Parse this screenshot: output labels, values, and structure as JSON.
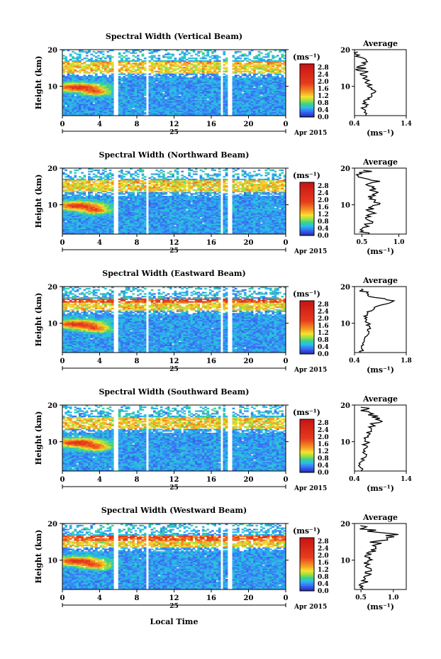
{
  "common": {
    "ylabel": "Height (km)",
    "xticks": [
      "0",
      "4",
      "8",
      "12",
      "16",
      "20",
      "0"
    ],
    "day_label": "25",
    "month_label": "Apr 2015",
    "xlabel": "Local Time",
    "unit_label": "(ms⁻¹)",
    "avg_title": "Average",
    "yticks": [
      "20",
      "10"
    ],
    "colorbar_ticks": [
      "2.8",
      "2.4",
      "2.0",
      "1.6",
      "1.2",
      "0.8",
      "0.4",
      "0.0"
    ],
    "colors": {
      "low": "#1f2a8c",
      "mid_blue": "#2f5be0",
      "cyan": "#29c9e6",
      "green": "#3fd08a",
      "yellow": "#f2e23a",
      "orange": "#f58a22",
      "red": "#e0241e"
    }
  },
  "chart_data": [
    {
      "type": "heatmap",
      "title": "Spectral Width (Vertical Beam)",
      "xlim": [
        0,
        24
      ],
      "ylim": [
        2,
        20
      ],
      "clim": [
        0.0,
        3.0
      ],
      "avg_xticks": [
        "0.4",
        "1.4"
      ],
      "avg_xlim": [
        0.4,
        1.4
      ],
      "avg_profile": {
        "heights": [
          2,
          3,
          4,
          5,
          6,
          7,
          8,
          9,
          10,
          11,
          12,
          13,
          14,
          15,
          16,
          17,
          18,
          19
        ],
        "values": [
          0.65,
          0.62,
          0.58,
          0.62,
          0.6,
          0.68,
          0.72,
          0.8,
          0.7,
          0.66,
          0.6,
          0.58,
          0.55,
          0.52,
          0.5,
          0.6,
          0.55,
          0.5
        ]
      }
    },
    {
      "type": "heatmap",
      "title": "Spectral Width (Northward Beam)",
      "xlim": [
        0,
        24
      ],
      "ylim": [
        2,
        20
      ],
      "clim": [
        0.0,
        3.0
      ],
      "avg_xticks": [
        "0.5",
        "1.0"
      ],
      "avg_xlim": [
        0.4,
        1.1
      ],
      "avg_profile": {
        "heights": [
          2,
          3,
          4,
          5,
          6,
          7,
          8,
          9,
          10,
          11,
          12,
          13,
          14,
          15,
          16,
          17,
          18,
          19
        ],
        "values": [
          0.55,
          0.52,
          0.55,
          0.6,
          0.58,
          0.62,
          0.65,
          0.6,
          0.7,
          0.68,
          0.62,
          0.72,
          0.6,
          0.55,
          0.75,
          0.62,
          0.5,
          0.52
        ]
      }
    },
    {
      "type": "heatmap",
      "title": "Spectral Width (Eastward Beam)",
      "xlim": [
        0,
        24
      ],
      "ylim": [
        2,
        20
      ],
      "clim": [
        0.0,
        3.0
      ],
      "avg_xticks": [
        "0.4",
        "1.8"
      ],
      "avg_xlim": [
        0.4,
        1.8
      ],
      "avg_profile": {
        "heights": [
          2,
          3,
          4,
          5,
          6,
          7,
          8,
          9,
          10,
          11,
          12,
          13,
          14,
          15,
          16,
          17,
          18,
          19
        ],
        "values": [
          0.6,
          0.58,
          0.62,
          0.66,
          0.68,
          0.72,
          0.75,
          0.8,
          0.76,
          0.72,
          0.7,
          0.75,
          0.9,
          1.1,
          1.45,
          0.95,
          0.7,
          0.6
        ]
      }
    },
    {
      "type": "heatmap",
      "title": "Spectral Width (Southward Beam)",
      "xlim": [
        0,
        24
      ],
      "ylim": [
        2,
        20
      ],
      "clim": [
        0.0,
        3.0
      ],
      "avg_xticks": [
        "0.4",
        "1.4"
      ],
      "avg_xlim": [
        0.4,
        1.4
      ],
      "avg_profile": {
        "heights": [
          2,
          3,
          4,
          5,
          6,
          7,
          8,
          9,
          10,
          11,
          12,
          13,
          14,
          15,
          16,
          17,
          18,
          19
        ],
        "values": [
          0.55,
          0.52,
          0.5,
          0.55,
          0.58,
          0.6,
          0.62,
          0.6,
          0.65,
          0.62,
          0.66,
          0.7,
          0.72,
          0.78,
          0.85,
          0.8,
          0.65,
          0.6
        ]
      }
    },
    {
      "type": "heatmap",
      "title": "Spectral Width (Westward Beam)",
      "xlim": [
        0,
        24
      ],
      "ylim": [
        2,
        20
      ],
      "clim": [
        0.0,
        3.0
      ],
      "avg_xticks": [
        "0.5",
        "1.0"
      ],
      "avg_xlim": [
        0.4,
        1.2
      ],
      "avg_profile": {
        "heights": [
          2,
          3,
          4,
          5,
          6,
          7,
          8,
          9,
          10,
          11,
          12,
          13,
          14,
          15,
          16,
          17,
          18,
          19
        ],
        "values": [
          0.55,
          0.52,
          0.55,
          0.58,
          0.6,
          0.62,
          0.6,
          0.58,
          0.62,
          0.6,
          0.65,
          0.7,
          0.72,
          0.75,
          0.85,
          1.05,
          0.65,
          0.55
        ]
      }
    }
  ]
}
